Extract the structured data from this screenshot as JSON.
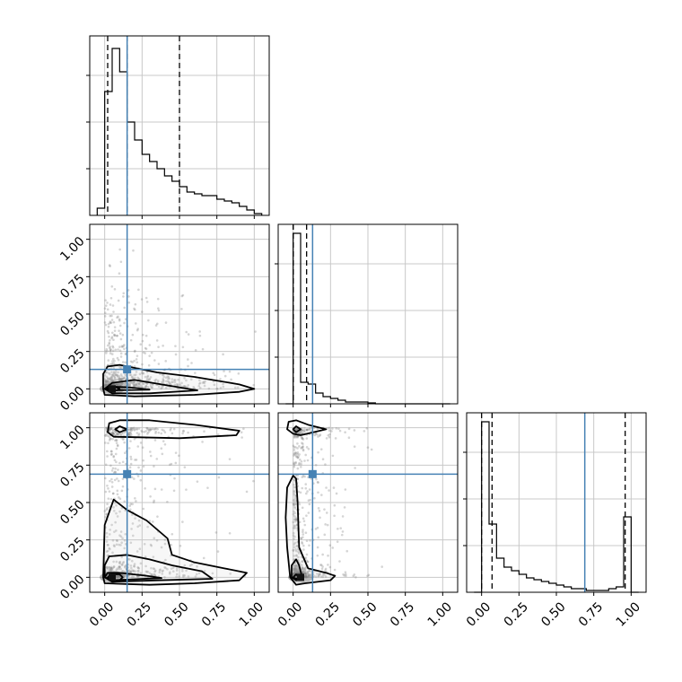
{
  "chart_data": {
    "type": "corner",
    "tick_values": [
      0.0,
      0.25,
      0.5,
      0.75,
      1.0
    ],
    "tick_labels": [
      "0.00",
      "0.25",
      "0.50",
      "0.75",
      "1.00"
    ],
    "axis_range": [
      -0.1,
      1.1
    ],
    "grid": true,
    "truth_color": "#4682b4",
    "truths": [
      0.15,
      0.13,
      0.69
    ],
    "quantile_lines": [
      [
        0.02,
        0.15,
        0.5
      ],
      [
        0.0,
        0.09,
        0.0
      ],
      [
        0.0,
        0.07,
        0.96
      ]
    ],
    "hist_bins": [
      -0.05,
      0.0,
      0.05,
      0.1,
      0.15,
      0.2,
      0.25,
      0.3,
      0.35,
      0.4,
      0.45,
      0.5,
      0.55,
      0.6,
      0.65,
      0.7,
      0.75,
      0.8,
      0.85,
      0.9,
      0.95,
      1.0,
      1.05
    ],
    "histograms": [
      [
        0.04,
        0.69,
        0.93,
        0.8,
        0.52,
        0.42,
        0.34,
        0.3,
        0.26,
        0.22,
        0.19,
        0.16,
        0.13,
        0.12,
        0.11,
        0.11,
        0.09,
        0.08,
        0.07,
        0.05,
        0.03,
        0.01
      ],
      [
        0.0,
        0.95,
        0.12,
        0.11,
        0.06,
        0.04,
        0.03,
        0.02,
        0.01,
        0.01,
        0.01,
        0.005,
        0.0,
        0.0,
        0.0,
        0.0,
        0.0,
        0.0,
        0.0,
        0.0,
        0.0,
        0.0
      ],
      [
        0.0,
        0.95,
        0.38,
        0.19,
        0.14,
        0.12,
        0.1,
        0.08,
        0.07,
        0.06,
        0.05,
        0.04,
        0.03,
        0.02,
        0.02,
        0.01,
        0.01,
        0.01,
        0.02,
        0.03,
        0.42,
        0.0
      ]
    ],
    "contours": [
      {
        "row": 1,
        "col": 0,
        "levels": [
          [
            [
              -0.01,
              0.0
            ],
            [
              0.0,
              -0.04
            ],
            [
              0.2,
              -0.05
            ],
            [
              0.6,
              -0.04
            ],
            [
              0.9,
              -0.02
            ],
            [
              1.0,
              0.0
            ],
            [
              0.9,
              0.03
            ],
            [
              0.6,
              0.08
            ],
            [
              0.35,
              0.11
            ],
            [
              0.2,
              0.14
            ],
            [
              0.1,
              0.16
            ],
            [
              0.02,
              0.15
            ],
            [
              -0.01,
              0.1
            ]
          ],
          [
            [
              0.0,
              0.0
            ],
            [
              0.05,
              -0.03
            ],
            [
              0.3,
              -0.03
            ],
            [
              0.62,
              -0.01
            ],
            [
              0.38,
              0.03
            ],
            [
              0.2,
              0.06
            ],
            [
              0.05,
              0.04
            ]
          ],
          [
            [
              0.0,
              0.0
            ],
            [
              0.04,
              -0.01
            ],
            [
              0.3,
              -0.005
            ],
            [
              0.16,
              0.01
            ],
            [
              0.05,
              0.015
            ]
          ],
          [
            [
              0.02,
              0.0
            ],
            [
              0.04,
              -0.01
            ],
            [
              0.08,
              -0.01
            ],
            [
              0.1,
              0.0
            ],
            [
              0.08,
              0.01
            ],
            [
              0.04,
              0.01
            ]
          ]
        ]
      },
      {
        "row": 2,
        "col": 0,
        "levels": [
          [
            [
              -0.01,
              0.0
            ],
            [
              0.0,
              -0.04
            ],
            [
              0.3,
              -0.05
            ],
            [
              0.6,
              -0.04
            ],
            [
              0.9,
              -0.02
            ],
            [
              0.95,
              0.03
            ],
            [
              0.8,
              0.06
            ],
            [
              0.6,
              0.1
            ],
            [
              0.45,
              0.15
            ],
            [
              0.42,
              0.26
            ],
            [
              0.28,
              0.38
            ],
            [
              0.15,
              0.45
            ],
            [
              0.06,
              0.52
            ],
            [
              0.0,
              0.35
            ]
          ],
          [
            [
              0.0,
              0.0
            ],
            [
              0.05,
              -0.03
            ],
            [
              0.35,
              -0.02
            ],
            [
              0.72,
              -0.01
            ],
            [
              0.65,
              0.04
            ],
            [
              0.45,
              0.08
            ],
            [
              0.3,
              0.12
            ],
            [
              0.15,
              0.15
            ],
            [
              0.03,
              0.14
            ],
            [
              0.0,
              0.08
            ]
          ],
          [
            [
              0.0,
              0.0
            ],
            [
              0.05,
              -0.02
            ],
            [
              0.38,
              -0.005
            ],
            [
              0.28,
              0.01
            ],
            [
              0.1,
              0.03
            ],
            [
              0.02,
              0.03
            ]
          ],
          [
            [
              0.02,
              0.0
            ],
            [
              0.04,
              -0.02
            ],
            [
              0.1,
              -0.02
            ],
            [
              0.12,
              0.0
            ],
            [
              0.1,
              0.02
            ],
            [
              0.04,
              0.02
            ]
          ],
          [
            [
              0.02,
              0.97
            ],
            [
              0.06,
              0.94
            ],
            [
              0.5,
              0.93
            ],
            [
              0.88,
              0.95
            ],
            [
              0.9,
              0.98
            ],
            [
              0.6,
              1.02
            ],
            [
              0.3,
              1.05
            ],
            [
              0.1,
              1.05
            ],
            [
              0.03,
              1.03
            ]
          ],
          [
            [
              0.07,
              0.99
            ],
            [
              0.1,
              0.97
            ],
            [
              0.15,
              0.99
            ],
            [
              0.1,
              1.01
            ]
          ]
        ]
      },
      {
        "row": 2,
        "col": 1,
        "levels": [
          [
            [
              -0.02,
              0.0
            ],
            [
              0.02,
              -0.05
            ],
            [
              0.08,
              -0.04
            ],
            [
              0.25,
              -0.02
            ],
            [
              0.28,
              0.01
            ],
            [
              0.22,
              0.03
            ],
            [
              0.1,
              0.06
            ],
            [
              0.04,
              0.2
            ],
            [
              0.03,
              0.5
            ],
            [
              0.02,
              0.66
            ],
            [
              0.0,
              0.68
            ],
            [
              -0.04,
              0.6
            ],
            [
              -0.05,
              0.4
            ],
            [
              -0.04,
              0.2
            ]
          ],
          [
            [
              -0.01,
              0.0
            ],
            [
              0.02,
              -0.02
            ],
            [
              0.06,
              0.0
            ],
            [
              0.04,
              0.08
            ],
            [
              0.02,
              0.12
            ],
            [
              -0.01,
              0.08
            ]
          ],
          [
            [
              0.0,
              0.0
            ],
            [
              0.02,
              -0.01
            ],
            [
              0.04,
              0.0
            ],
            [
              0.02,
              0.02
            ]
          ],
          [
            [
              -0.04,
              0.99
            ],
            [
              0.0,
              0.96
            ],
            [
              0.05,
              0.95
            ],
            [
              0.22,
              0.99
            ],
            [
              0.1,
              1.02
            ],
            [
              0.02,
              1.05
            ],
            [
              -0.03,
              1.04
            ]
          ],
          [
            [
              0.0,
              0.99
            ],
            [
              0.02,
              0.97
            ],
            [
              0.05,
              0.99
            ],
            [
              0.02,
              1.01
            ]
          ]
        ]
      }
    ]
  }
}
